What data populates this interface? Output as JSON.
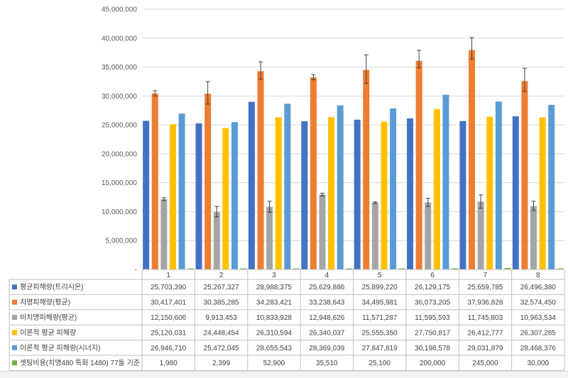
{
  "chart_data": {
    "type": "bar",
    "categories": [
      "1",
      "2",
      "3",
      "4",
      "5",
      "6",
      "7",
      "8"
    ],
    "ylim": [
      0,
      45000000
    ],
    "yticks": [
      0,
      5000000,
      10000000,
      15000000,
      20000000,
      25000000,
      30000000,
      35000000,
      40000000,
      45000000
    ],
    "ytick_labels": [
      "-",
      "5,000,000",
      "10,000,000",
      "15,000,000",
      "20,000,000",
      "25,000,000",
      "30,000,000",
      "35,000,000",
      "40,000,000",
      "45,000,000"
    ],
    "grid": true,
    "legend": "data-table-left",
    "series": [
      {
        "name": "평균피해량(트리시온)",
        "color": "#4472C4",
        "values": [
          25703390,
          25267327,
          28988375,
          25629886,
          25899220,
          26129175,
          25659785,
          26496380
        ],
        "labels": [
          "25,703,390",
          "25,267,327",
          "28,988,375",
          "25,629,886",
          "25,899,220",
          "26,129,175",
          "25,659,785",
          "26,496,380"
        ]
      },
      {
        "name": "치명피해량(평균)",
        "color": "#ED7D31",
        "values": [
          30417401,
          30385285,
          34283421,
          33238643,
          34495981,
          36073205,
          37936828,
          32574450
        ],
        "labels": [
          "30,417,401",
          "30,385,285",
          "34,283,421",
          "33,238,643",
          "34,495,981",
          "36,073,205",
          "37,936,828",
          "32,574,450"
        ],
        "error_low": [
          30000000,
          28600000,
          32900000,
          32800000,
          32200000,
          34900000,
          36400000,
          30800000
        ],
        "error_high": [
          30900000,
          32500000,
          35900000,
          33700000,
          37100000,
          37900000,
          40100000,
          34800000
        ]
      },
      {
        "name": "비치명피해량(평균)",
        "color": "#A5A5A5",
        "values": [
          12150606,
          9913453,
          10833928,
          12948626,
          11571287,
          11595593,
          11745803,
          10963534
        ],
        "labels": [
          "12,150,606",
          "9,913,453",
          "10,833,928",
          "12,948,626",
          "11,571,287",
          "11,595,593",
          "11,745,803",
          "10,963,534"
        ],
        "error_low": [
          11900000,
          9100000,
          9900000,
          12700000,
          11400000,
          10900000,
          10600000,
          10200000
        ],
        "error_high": [
          12400000,
          10900000,
          11800000,
          13200000,
          11700000,
          12300000,
          12900000,
          11800000
        ]
      },
      {
        "name": "이론적 평균 피해량",
        "color": "#FFC000",
        "values": [
          25120031,
          24448454,
          26310594,
          26340037,
          25555350,
          27750817,
          26412777,
          26307285
        ],
        "labels": [
          "25,120,031",
          "24,448,454",
          "26,310,594",
          "26,340,037",
          "25,555,350",
          "27,750,817",
          "26,412,777",
          "26,307,285"
        ]
      },
      {
        "name": "이론적 평균 피해량(시너지)",
        "color": "#5B9BD5",
        "values": [
          26946710,
          25472045,
          28655543,
          28369039,
          27847819,
          30198578,
          29031879,
          28468376
        ],
        "labels": [
          "26,946,710",
          "25,472,045",
          "28,655,543",
          "28,369,039",
          "27,847,819",
          "30,198,578",
          "29,031,879",
          "28,468,376"
        ]
      },
      {
        "name": "셋팅비용(치명480 특화 1480) 77돌 기준",
        "color": "#70AD47",
        "values": [
          1980,
          2399,
          52900,
          35510,
          25100,
          200000,
          245000,
          30000
        ],
        "labels": [
          "1,980",
          "2,399",
          "52,900",
          "35,510",
          "25,100",
          "200,000",
          "245,000",
          "30,000"
        ]
      }
    ]
  }
}
